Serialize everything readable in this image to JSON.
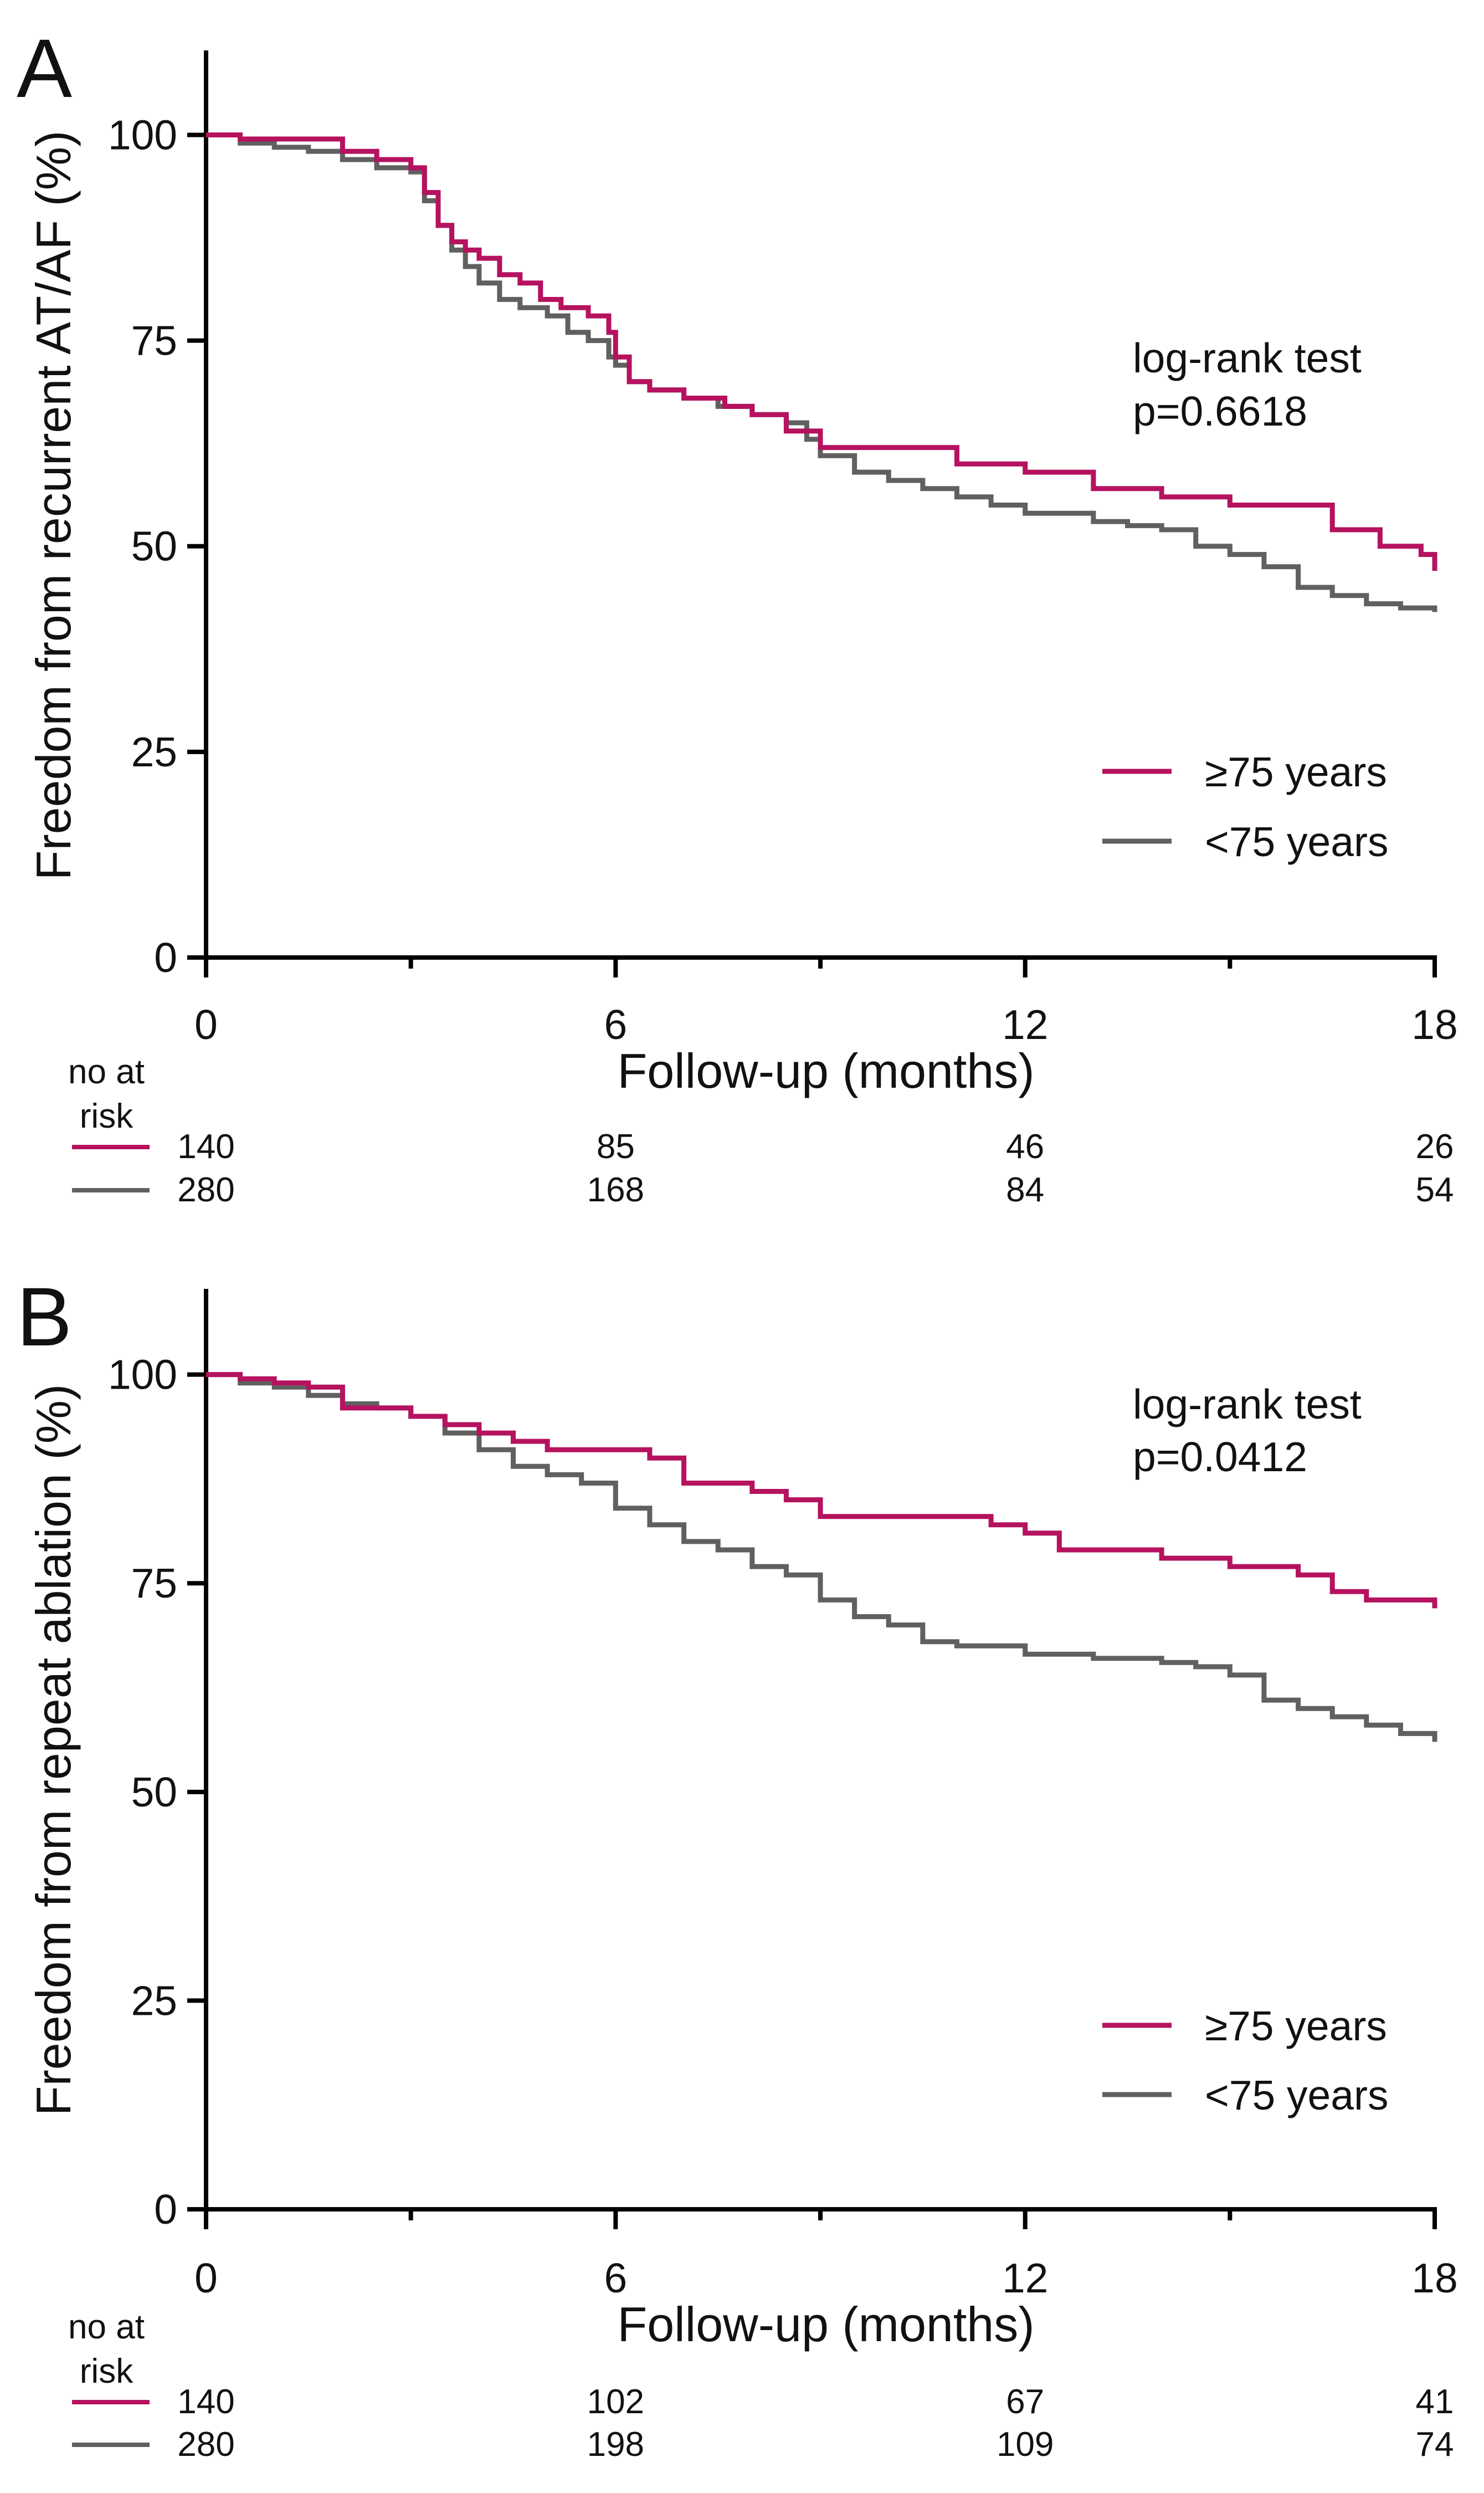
{
  "figure": {
    "colors": {
      "older": "#b5125f",
      "younger": "#606060",
      "axis": "#000000"
    }
  },
  "chart_data": [
    {
      "panel": "A",
      "type": "line",
      "subtype": "kaplan-meier",
      "xlabel": "Follow-up (months)",
      "ylabel": "Freedom from recurrent AT/AF (%)",
      "xlim": [
        0,
        18
      ],
      "ylim": [
        0,
        110
      ],
      "x_ticks": [
        0,
        6,
        12,
        18
      ],
      "x_minor_ticks": [
        3,
        9,
        15
      ],
      "y_ticks": [
        0,
        25,
        50,
        75,
        100
      ],
      "grid": false,
      "annotation": [
        "log-rank test",
        "p=0.6618"
      ],
      "legend_position": "bottom-right",
      "series": [
        {
          "name": "≥75 years",
          "color": "#b5125f",
          "x": [
            0,
            0.5,
            1.0,
            1.5,
            2.0,
            2.5,
            3.0,
            3.2,
            3.4,
            3.6,
            3.8,
            4.0,
            4.3,
            4.6,
            4.9,
            5.2,
            5.6,
            5.9,
            6.0,
            6.2,
            6.5,
            7.0,
            7.6,
            8.0,
            8.5,
            9.0,
            10.0,
            11.0,
            12.0,
            13.0,
            14.0,
            15.0,
            16.0,
            16.5,
            17.2,
            17.8,
            18.0
          ],
          "y": [
            100,
            99.5,
            99.5,
            99.5,
            98,
            97,
            96,
            93,
            89,
            87,
            86,
            85,
            83,
            82,
            80,
            79,
            78,
            76,
            73,
            70,
            69,
            68,
            67,
            66,
            64,
            62,
            62,
            60,
            59,
            57,
            56,
            55,
            55,
            52,
            50,
            49,
            47
          ]
        },
        {
          "name": "<75 years",
          "color": "#606060",
          "x": [
            0,
            0.5,
            1.0,
            1.5,
            2.0,
            2.5,
            3.0,
            3.2,
            3.4,
            3.6,
            3.8,
            4.0,
            4.3,
            4.6,
            5.0,
            5.3,
            5.6,
            5.9,
            6.0,
            6.2,
            6.5,
            7.0,
            7.5,
            8.0,
            8.5,
            8.8,
            9.0,
            9.5,
            10.0,
            10.5,
            11.0,
            11.5,
            12.0,
            12.5,
            13.0,
            13.5,
            14.0,
            14.5,
            15.0,
            15.5,
            16.0,
            16.5,
            17.0,
            17.5,
            18.0
          ],
          "y": [
            100,
            99,
            98.5,
            98,
            97,
            96,
            95.5,
            92,
            89,
            86,
            84,
            82,
            80,
            79,
            78,
            76,
            75,
            73,
            72,
            70,
            69,
            68,
            67,
            66,
            65,
            63,
            61,
            59,
            58,
            57,
            56,
            55,
            54,
            54,
            53,
            52.5,
            52,
            50,
            49,
            47.5,
            45,
            44,
            43,
            42.5,
            42
          ]
        }
      ],
      "risk_table": {
        "header_line1": "no at",
        "header_line2": "risk",
        "time_points": [
          0,
          6,
          12,
          18
        ],
        "rows": [
          {
            "group": "≥75 years",
            "values": [
              "140",
              "85",
              "46",
              "26"
            ]
          },
          {
            "group": "<75 years",
            "values": [
              "280",
              "168",
              "84",
              "54"
            ]
          }
        ]
      }
    },
    {
      "panel": "B",
      "type": "line",
      "subtype": "kaplan-meier",
      "xlabel": "Follow-up (months)",
      "ylabel": "Freedom from repeat ablation (%)",
      "xlim": [
        0,
        18
      ],
      "ylim": [
        0,
        110
      ],
      "x_ticks": [
        0,
        6,
        12,
        18
      ],
      "x_minor_ticks": [
        3,
        9,
        15
      ],
      "y_ticks": [
        0,
        25,
        50,
        75,
        100
      ],
      "grid": false,
      "annotation": [
        "log-rank test",
        "p=0.0412"
      ],
      "legend_position": "bottom-right",
      "series": [
        {
          "name": "≥75 years",
          "color": "#b5125f",
          "x": [
            0,
            0.5,
            1.0,
            1.5,
            2.0,
            2.5,
            3.0,
            3.5,
            4.0,
            4.5,
            5.0,
            5.5,
            6.0,
            6.5,
            7.0,
            7.5,
            8.0,
            8.5,
            9.0,
            10.0,
            11.0,
            11.5,
            12.0,
            12.5,
            13.0,
            14.0,
            15.0,
            16.0,
            16.5,
            17.0,
            17.5,
            18.0
          ],
          "y": [
            100,
            99.5,
            99,
            98.5,
            96,
            96,
            95,
            94,
            93,
            92,
            91,
            91,
            91,
            90,
            87,
            87,
            86,
            85,
            83,
            83,
            83,
            82,
            81,
            79,
            79,
            78,
            77,
            76,
            74,
            73,
            73,
            72
          ]
        },
        {
          "name": "<75 years",
          "color": "#606060",
          "x": [
            0,
            0.5,
            1.0,
            1.5,
            2.0,
            2.5,
            3.0,
            3.5,
            4.0,
            4.5,
            5.0,
            5.5,
            6.0,
            6.5,
            7.0,
            7.5,
            8.0,
            8.5,
            9.0,
            9.5,
            10.0,
            10.5,
            11.0,
            12.0,
            13.0,
            14.0,
            14.5,
            15.0,
            15.5,
            16.0,
            16.5,
            17.0,
            17.5,
            18.0
          ],
          "y": [
            100,
            99,
            98.5,
            97.5,
            96.5,
            96,
            95,
            93,
            91,
            89,
            88,
            87,
            84,
            82,
            80,
            79,
            77,
            76,
            73,
            71,
            70,
            68,
            67.5,
            66.5,
            66,
            65.5,
            65,
            64,
            61,
            60,
            59,
            58,
            57,
            56
          ]
        }
      ],
      "risk_table": {
        "header_line1": "no at",
        "header_line2": "risk",
        "time_points": [
          0,
          6,
          12,
          18
        ],
        "rows": [
          {
            "group": "≥75 years",
            "values": [
              "140",
              "102",
              "67",
              "41"
            ]
          },
          {
            "group": "<75 years",
            "values": [
              "280",
              "198",
              "109",
              "74"
            ]
          }
        ]
      }
    }
  ]
}
